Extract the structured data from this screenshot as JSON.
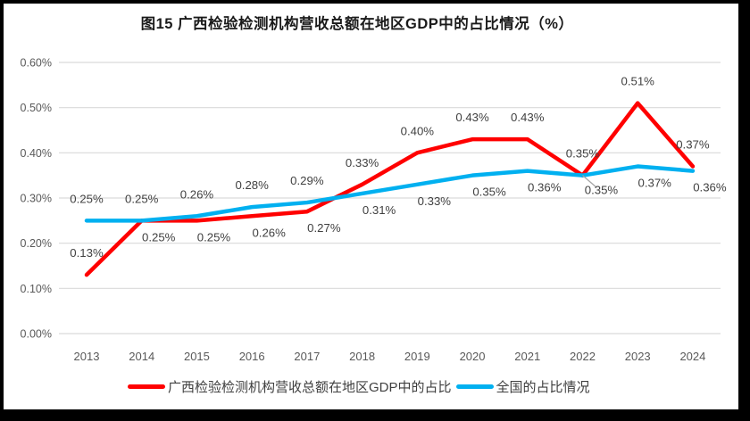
{
  "chart_data": {
    "type": "line",
    "title": "图15 广西检验检测机构营收总额在地区GDP中的占比情况（%）",
    "categories": [
      "2013",
      "2014",
      "2015",
      "2016",
      "2017",
      "2018",
      "2019",
      "2020",
      "2021",
      "2022",
      "2023",
      "2024"
    ],
    "xlabel": "",
    "ylabel": "",
    "ylim": [
      0,
      0.6
    ],
    "yticks": [
      0,
      0.1,
      0.2,
      0.3,
      0.4,
      0.5,
      0.6
    ],
    "ytick_format": "0.00%",
    "grid": true,
    "legend_position": "bottom",
    "series": [
      {
        "id": "guangxi",
        "name": "广西检验检测机构营收总额在地区GDP中的占比",
        "color": "#FF0000",
        "values": [
          0.13,
          0.25,
          0.25,
          0.26,
          0.27,
          0.33,
          0.4,
          0.43,
          0.43,
          0.35,
          0.51,
          0.37
        ],
        "label_positions": [
          "above",
          "below",
          "below",
          "below",
          "below",
          "above",
          "above",
          "above",
          "above",
          "leader",
          "above",
          "above"
        ]
      },
      {
        "id": "national",
        "name": "全国的占比情况",
        "color": "#00B0F0",
        "values": [
          0.25,
          0.25,
          0.26,
          0.28,
          0.29,
          0.31,
          0.33,
          0.35,
          0.36,
          0.35,
          0.37,
          0.36
        ],
        "label_positions": [
          "above",
          "above",
          "above",
          "above",
          "above",
          "below",
          "below",
          "below",
          "below",
          "above",
          "below",
          "below"
        ]
      }
    ],
    "colors": {
      "grid": "#D9D9D9",
      "tick_text": "#595959",
      "label_text": "#404040",
      "leader": "#A6A6A6",
      "frame": "#000000"
    }
  }
}
